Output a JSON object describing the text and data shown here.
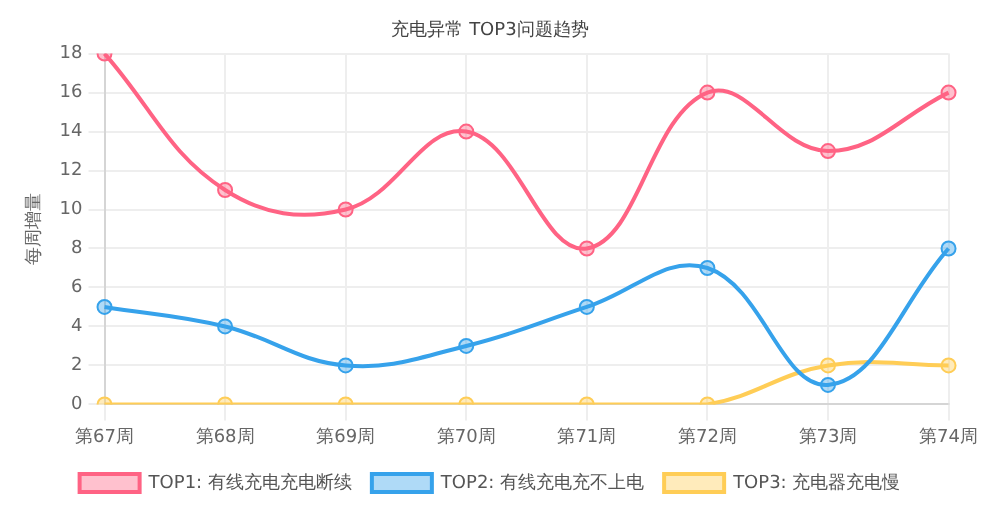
{
  "chart_data": {
    "type": "line",
    "title": "充电异常 TOP3问题趋势",
    "ylabel": "每周增量",
    "categories": [
      "第67周",
      "第68周",
      "第69周",
      "第70周",
      "第71周",
      "第72周",
      "第73周",
      "第74周"
    ],
    "series": [
      {
        "name": "TOP1: 有线充电充电断续",
        "color": "#ff6384",
        "values": [
          18,
          11,
          10,
          14,
          8,
          16,
          13,
          16
        ]
      },
      {
        "name": "TOP2: 有线充电充不上电",
        "color": "#36a2eb",
        "values": [
          5,
          4,
          2,
          3,
          5,
          7,
          1,
          8
        ]
      },
      {
        "name": "TOP3: 充电器充电慢",
        "color": "#ffcd56",
        "values": [
          0,
          0,
          0,
          0,
          0,
          0,
          2,
          2
        ]
      }
    ],
    "ylim": [
      0,
      18
    ],
    "yticks": [
      0,
      2,
      4,
      6,
      8,
      10,
      12,
      14,
      16,
      18
    ],
    "grid": true,
    "legend": "bottom",
    "marker": "circle",
    "line_style": "solid"
  }
}
